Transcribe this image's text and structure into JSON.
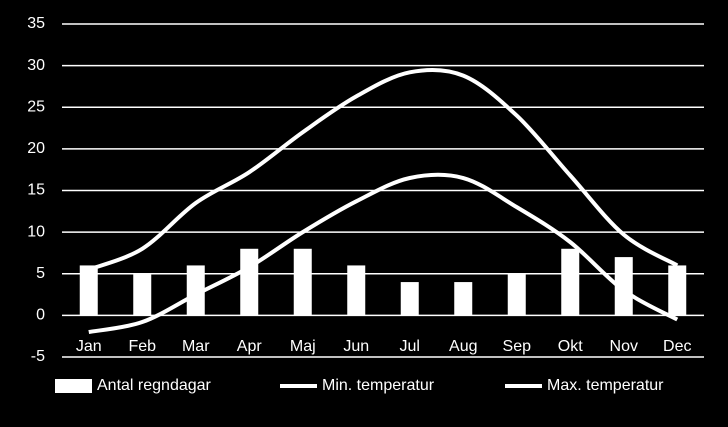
{
  "chart_data": {
    "type": "bar-line",
    "categories": [
      "Jan",
      "Feb",
      "Mar",
      "Apr",
      "Maj",
      "Jun",
      "Jul",
      "Aug",
      "Sep",
      "Okt",
      "Nov",
      "Dec"
    ],
    "series": [
      {
        "name": "Antal regndagar",
        "type": "bar",
        "color": "#ffffff",
        "values": [
          6,
          5,
          6,
          8,
          8,
          6,
          4,
          4,
          5,
          8,
          7,
          6
        ]
      },
      {
        "name": "Min. temperatur",
        "type": "line",
        "color": "#ffffff",
        "values": [
          -2,
          -0.8,
          2.5,
          5.8,
          10,
          13.7,
          16.5,
          16.5,
          13,
          8.8,
          3,
          -0.5
        ]
      },
      {
        "name": "Max. temperatur",
        "type": "line",
        "color": "#ffffff",
        "values": [
          5.5,
          8,
          13.5,
          17.2,
          22,
          26.3,
          29.2,
          28.8,
          24,
          16.8,
          9.7,
          6
        ]
      }
    ],
    "ylim": [
      -5,
      35
    ],
    "yticks": [
      -5,
      0,
      5,
      10,
      15,
      20,
      25,
      30,
      35
    ],
    "grid": true,
    "legend": "bottom"
  }
}
